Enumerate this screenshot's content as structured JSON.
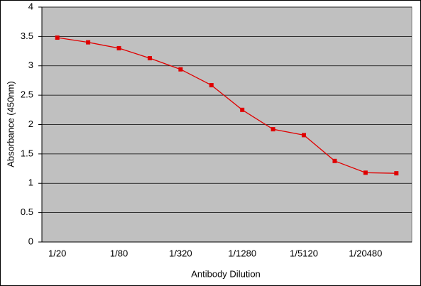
{
  "chart_data": {
    "type": "line",
    "x_label": "Antibody Dilution",
    "y_label": "Absorbance (450nm)",
    "categories": [
      "1/20",
      null,
      "1/80",
      null,
      "1/320",
      null,
      "1/1280",
      null,
      "1/5120",
      null,
      "1/20480",
      null
    ],
    "values": [
      3.48,
      3.4,
      3.3,
      3.13,
      2.94,
      2.67,
      2.25,
      1.92,
      1.82,
      1.38,
      1.18,
      1.17
    ],
    "color": "#e00000",
    "ylim": [
      0,
      4
    ],
    "yticks": [
      0,
      0.5,
      1,
      1.5,
      2,
      2.5,
      3,
      3.5,
      4
    ],
    "grid": true
  }
}
